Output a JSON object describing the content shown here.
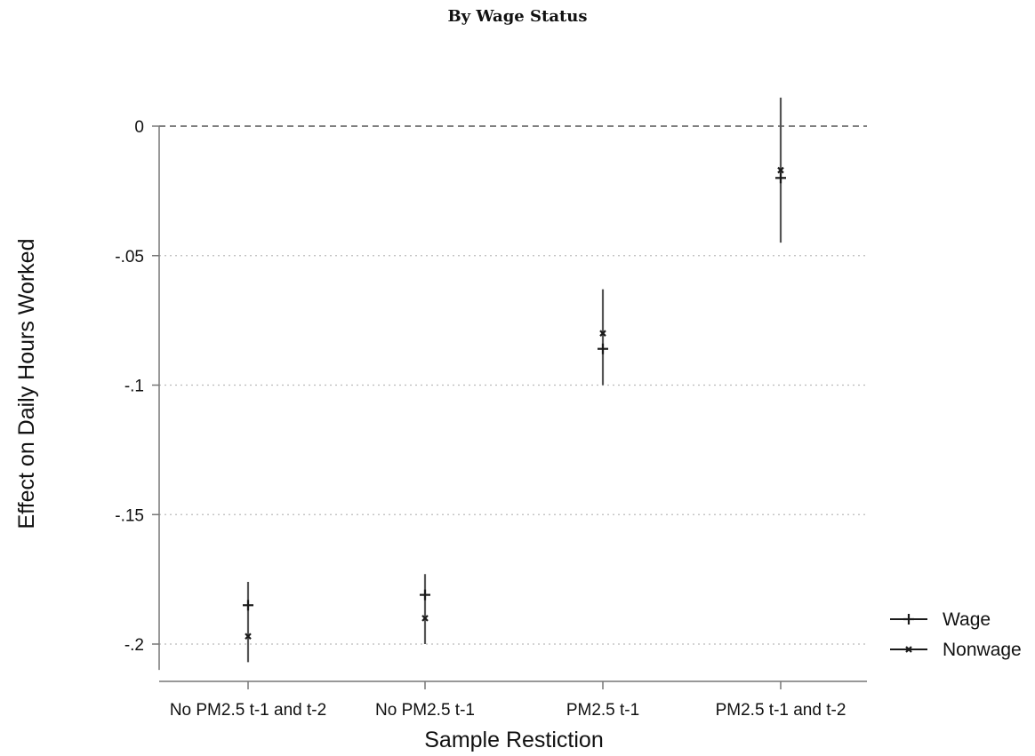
{
  "chart_data": {
    "type": "scatter",
    "title": "By Wage Status",
    "xlabel": "Sample Restiction",
    "ylabel": "Effect on Daily Hours Worked",
    "categories": [
      "No PM2.5 t-1 and t-2",
      "No PM2.5 t-1",
      "PM2.5 t-1",
      "PM2.5 t-1 and t-2"
    ],
    "ylim": [
      -0.21,
      0.012
    ],
    "yticks": [
      0,
      -0.05,
      -0.1,
      -0.15,
      -0.2
    ],
    "ytick_labels": [
      "0",
      "-.05",
      "-.1",
      "-.15",
      "-.2"
    ],
    "reference_line": 0,
    "grid": "horizontal dotted",
    "legend_position": "right",
    "series": [
      {
        "name": "Wage",
        "marker": "plus",
        "values": [
          -0.185,
          -0.181,
          -0.086,
          -0.02
        ]
      },
      {
        "name": "Nonwage",
        "marker": "x",
        "values": [
          -0.197,
          -0.19,
          -0.08,
          -0.017
        ]
      }
    ],
    "error_bars": [
      {
        "category": "No PM2.5 t-1 and t-2",
        "low": -0.207,
        "high": -0.176
      },
      {
        "category": "No PM2.5 t-1",
        "low": -0.2,
        "high": -0.173
      },
      {
        "category": "PM2.5 t-1",
        "low": -0.1,
        "high": -0.063
      },
      {
        "category": "PM2.5 t-1 and t-2",
        "low": -0.045,
        "high": 0.011
      }
    ],
    "colors": {
      "marks": "#1a1a1a",
      "ci": "#555555",
      "axis": "#777777",
      "grid": "#bbbbbb"
    }
  }
}
